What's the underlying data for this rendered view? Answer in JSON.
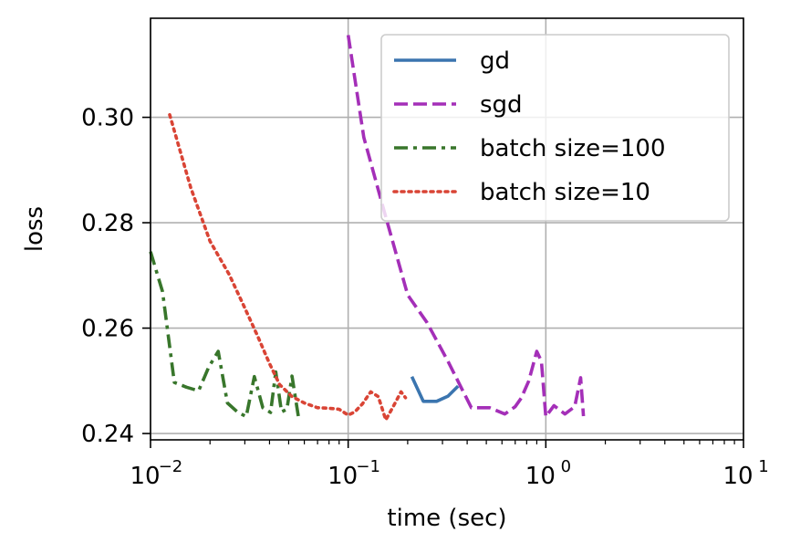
{
  "chart_data": {
    "type": "line",
    "xlabel": "time (sec)",
    "ylabel": "loss",
    "xscale": "log",
    "xlim": [
      0.01,
      10
    ],
    "ylim": [
      0.2388,
      0.3188
    ],
    "grid": true,
    "legend_position": "top-right",
    "x_ticks": [
      {
        "value": 0.01,
        "base": "10",
        "exp": "−2"
      },
      {
        "value": 0.1,
        "base": "10",
        "exp": "−1"
      },
      {
        "value": 1,
        "base": "10",
        "exp": "0"
      },
      {
        "value": 10,
        "base": "10",
        "exp": "1"
      }
    ],
    "y_ticks": [
      {
        "value": 0.24,
        "label": "0.24"
      },
      {
        "value": 0.26,
        "label": "0.26"
      },
      {
        "value": 0.28,
        "label": "0.28"
      },
      {
        "value": 0.3,
        "label": "0.30"
      }
    ],
    "series": [
      {
        "name": "gd",
        "color": "#3b75af",
        "dash": "solid",
        "x": [
          0.21,
          0.24,
          0.28,
          0.32,
          0.36
        ],
        "y": [
          0.2508,
          0.2461,
          0.2461,
          0.2471,
          0.249
        ]
      },
      {
        "name": "sgd",
        "color": "#a42fb8",
        "dash": "dashed",
        "x": [
          0.1,
          0.12,
          0.15,
          0.2,
          0.25,
          0.32,
          0.42,
          0.52,
          0.62,
          0.7,
          0.75,
          0.82,
          0.9,
          0.95,
          1.0,
          1.1,
          1.25,
          1.4,
          1.5,
          1.55
        ],
        "y": [
          0.3156,
          0.2962,
          0.283,
          0.2663,
          0.2611,
          0.2537,
          0.2449,
          0.2449,
          0.2437,
          0.2451,
          0.2467,
          0.25,
          0.2556,
          0.2537,
          0.2432,
          0.2453,
          0.2437,
          0.2451,
          0.2506,
          0.2433
        ]
      },
      {
        "name": "batch size=100",
        "color": "#38762b",
        "dash": "dashdot",
        "x": [
          0.01,
          0.0115,
          0.0132,
          0.0152,
          0.0175,
          0.0197,
          0.022,
          0.0245,
          0.0275,
          0.0305,
          0.0335,
          0.037,
          0.0405,
          0.043,
          0.046,
          0.049,
          0.052,
          0.056
        ],
        "y": [
          0.2745,
          0.2669,
          0.2497,
          0.2488,
          0.2481,
          0.2526,
          0.2556,
          0.2458,
          0.2441,
          0.2432,
          0.2508,
          0.2449,
          0.244,
          0.2517,
          0.2441,
          0.2446,
          0.2509,
          0.2432
        ]
      },
      {
        "name": "batch size=10",
        "color": "#d94435",
        "dash": "dotted",
        "x": [
          0.0125,
          0.016,
          0.02,
          0.025,
          0.03,
          0.035,
          0.04,
          0.045,
          0.052,
          0.06,
          0.07,
          0.08,
          0.09,
          0.1,
          0.108,
          0.118,
          0.13,
          0.142,
          0.155,
          0.17,
          0.185,
          0.195
        ],
        "y": [
          0.3005,
          0.2866,
          0.2765,
          0.2702,
          0.2638,
          0.2583,
          0.2533,
          0.2493,
          0.247,
          0.2458,
          0.2449,
          0.2448,
          0.2446,
          0.2435,
          0.2441,
          0.2456,
          0.2479,
          0.247,
          0.2426,
          0.2453,
          0.2479,
          0.2468
        ]
      }
    ]
  }
}
